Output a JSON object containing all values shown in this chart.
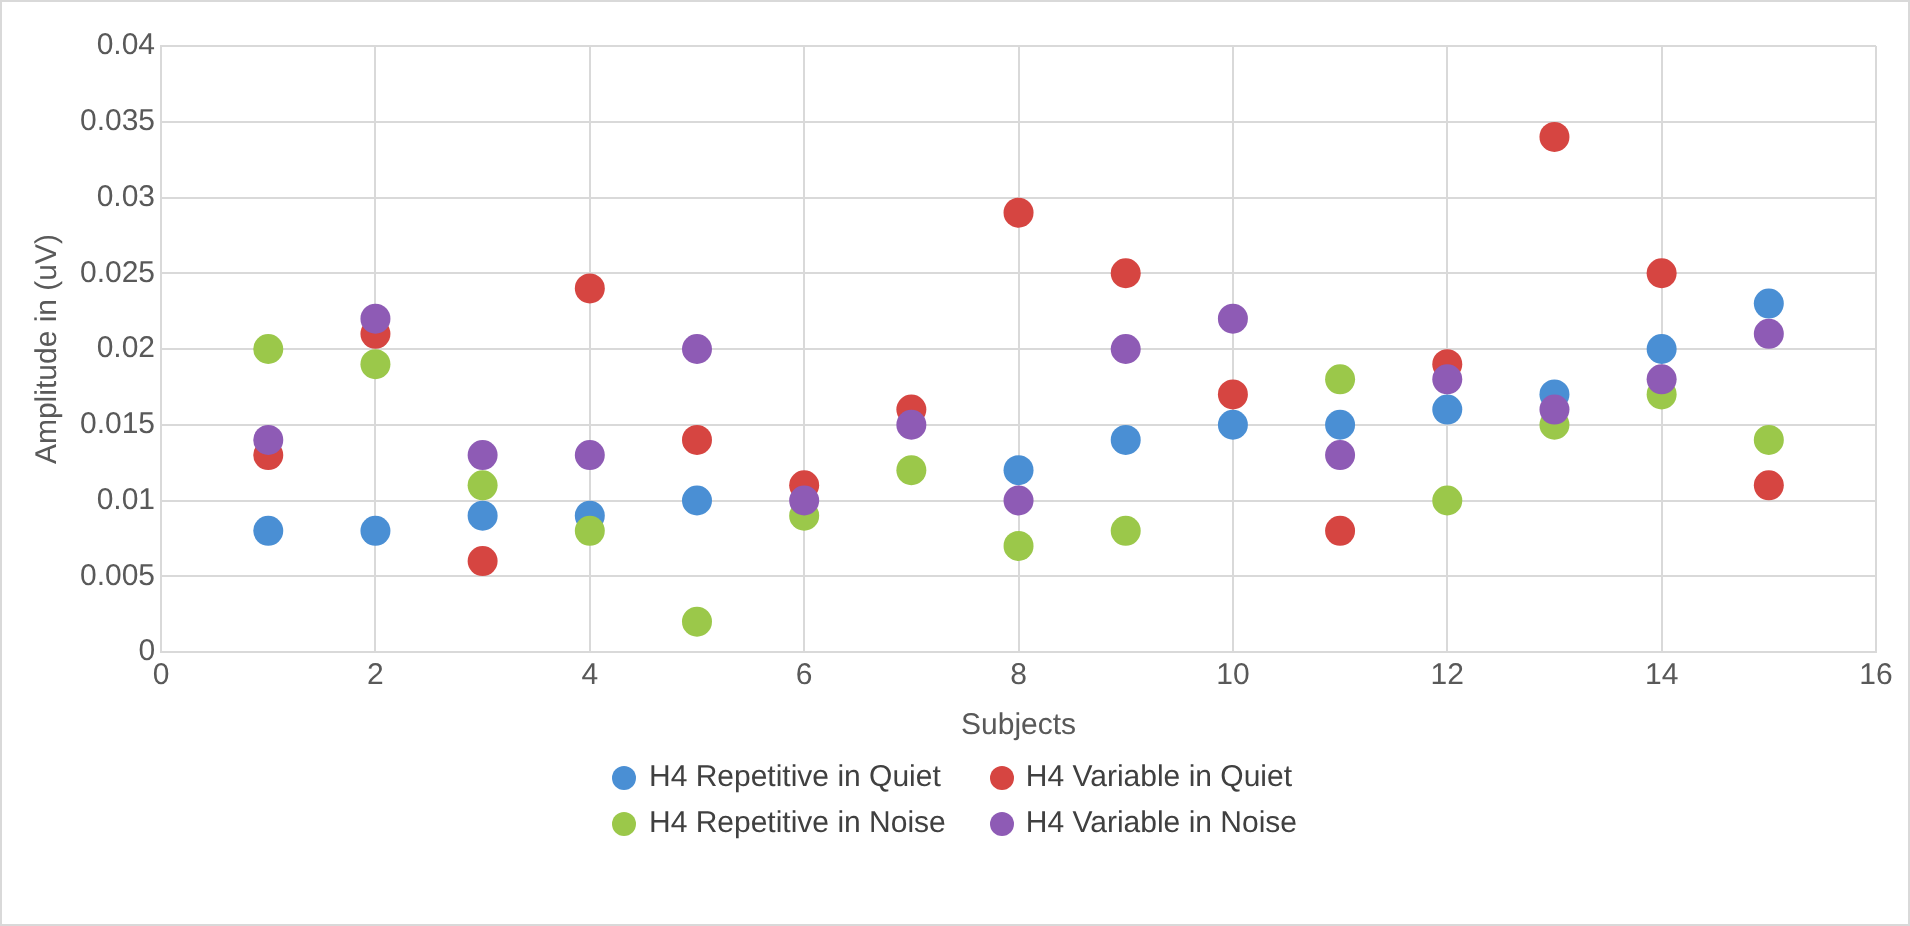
{
  "chart_data": {
    "type": "scatter",
    "xlabel": "Subjects",
    "ylabel": "Amplitude in (uV)",
    "x": [
      1,
      2,
      3,
      4,
      5,
      6,
      7,
      8,
      9,
      10,
      11,
      12,
      13,
      14,
      15
    ],
    "xlim": [
      0,
      16
    ],
    "xticks": [
      0,
      2,
      4,
      6,
      8,
      10,
      12,
      14,
      16
    ],
    "ylim": [
      0,
      0.04
    ],
    "yticks": [
      0,
      0.005,
      0.01,
      0.015,
      0.02,
      0.025,
      0.03,
      0.035,
      0.04
    ],
    "grid": true,
    "legend": "bottom",
    "marker": "circle",
    "series": [
      {
        "name": "H4 Repetitive in Quiet",
        "color": "#4a8fd4",
        "values": [
          0.008,
          0.008,
          0.009,
          0.009,
          0.01,
          null,
          null,
          0.012,
          0.014,
          0.015,
          0.015,
          0.016,
          0.017,
          0.02,
          0.023
        ]
      },
      {
        "name": "H4 Variable in Quiet",
        "color": "#d64541",
        "values": [
          0.013,
          0.021,
          0.006,
          0.024,
          0.014,
          0.011,
          0.016,
          0.029,
          0.025,
          0.017,
          0.008,
          0.019,
          0.034,
          0.025,
          0.011
        ]
      },
      {
        "name": "H4 Repetitive in Noise",
        "color": "#9bc84a",
        "values": [
          0.02,
          0.019,
          0.011,
          0.008,
          0.002,
          0.009,
          0.012,
          0.007,
          0.008,
          null,
          0.018,
          0.01,
          0.015,
          0.017,
          0.014
        ]
      },
      {
        "name": "H4 Variable in Noise",
        "color": "#8e5bb5",
        "values": [
          0.014,
          0.022,
          0.013,
          0.013,
          0.02,
          0.01,
          0.015,
          0.01,
          0.02,
          0.022,
          0.013,
          0.018,
          0.016,
          0.018,
          0.021
        ]
      }
    ]
  }
}
